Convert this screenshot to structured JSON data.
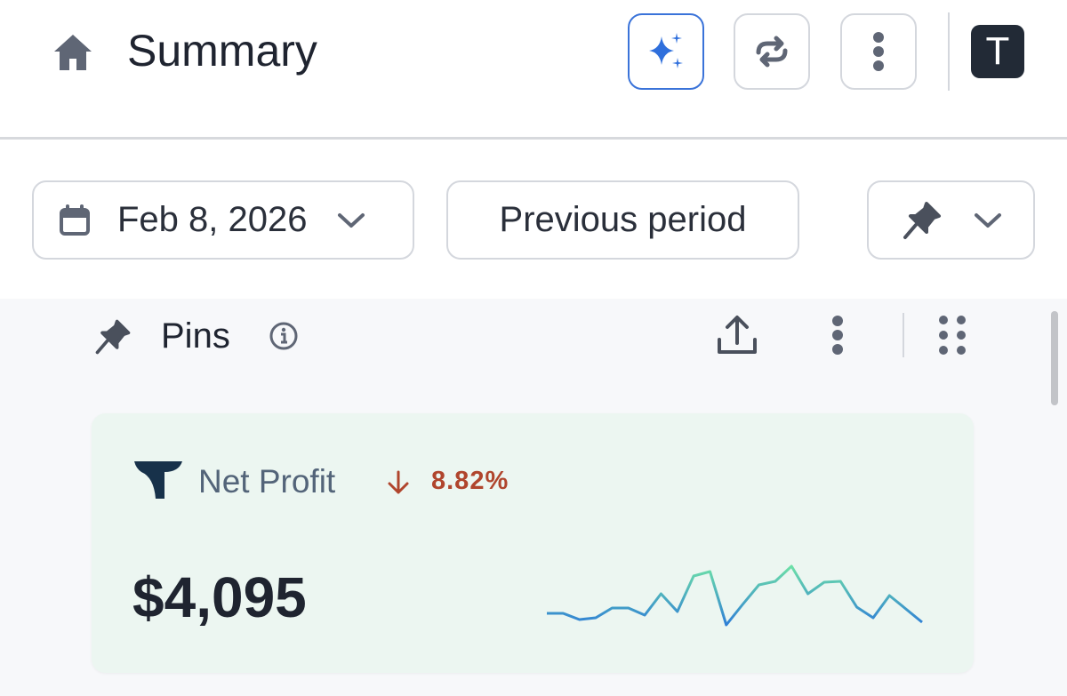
{
  "header": {
    "title": "Summary",
    "avatar": "T"
  },
  "toolbar": {
    "date": "Feb 8, 2026",
    "compare": "Previous period"
  },
  "section": {
    "title": "Pins"
  },
  "card": {
    "title": "Net Profit",
    "change": "8.82%",
    "value": "$4,095",
    "sparkline": {
      "values": [
        20,
        20,
        13,
        15,
        26,
        26,
        18,
        42,
        22,
        62,
        67,
        7,
        30,
        52,
        56,
        73,
        42,
        55,
        56,
        27,
        15,
        40,
        25,
        10
      ]
    }
  }
}
